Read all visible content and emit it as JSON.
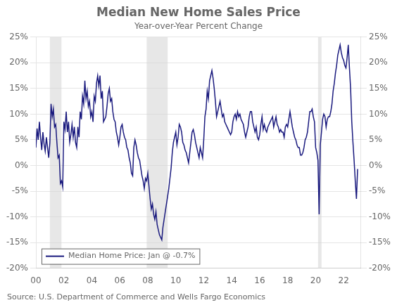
{
  "chart_data": {
    "type": "line",
    "title": "Median New Home Sales Price",
    "subtitle": "Year-over-Year Percent Change",
    "source": "Source: U.S. Department of Commerce and Wells Fargo Economics",
    "legend": "lower left",
    "grid": true,
    "recessions": [
      [
        2001.0,
        2001.83
      ],
      [
        2007.92,
        2009.42
      ],
      [
        2020.17,
        2020.42
      ]
    ],
    "recession_color": "#d3d3d3",
    "xlim": [
      2000.0,
      2023.25
    ],
    "xticks": [
      {
        "value": 2000,
        "label": "00"
      },
      {
        "value": 2002,
        "label": "02"
      },
      {
        "value": 2004,
        "label": "04"
      },
      {
        "value": 2006,
        "label": "06"
      },
      {
        "value": 2008,
        "label": "08"
      },
      {
        "value": 2010,
        "label": "10"
      },
      {
        "value": 2012,
        "label": "12"
      },
      {
        "value": 2014,
        "label": "14"
      },
      {
        "value": 2016,
        "label": "16"
      },
      {
        "value": 2018,
        "label": "18"
      },
      {
        "value": 2020,
        "label": "20"
      },
      {
        "value": 2022,
        "label": "22"
      }
    ],
    "ylim": [
      -20,
      25
    ],
    "yticks": [
      {
        "value": -20,
        "label": "-20%"
      },
      {
        "value": -15,
        "label": "-15%"
      },
      {
        "value": -10,
        "label": "-10%"
      },
      {
        "value": -5,
        "label": "-5%"
      },
      {
        "value": 0,
        "label": "0%"
      },
      {
        "value": 5,
        "label": "5%"
      },
      {
        "value": 10,
        "label": "10%"
      },
      {
        "value": 15,
        "label": "15%"
      },
      {
        "value": 20,
        "label": "20%"
      },
      {
        "value": 25,
        "label": "25%"
      }
    ],
    "y2lim": [
      -20,
      25
    ],
    "y2ticks": [
      {
        "value": -20,
        "label": "-20%"
      },
      {
        "value": -15,
        "label": "-15%"
      },
      {
        "value": -10,
        "label": "-10%"
      },
      {
        "value": -5,
        "label": "-5%"
      },
      {
        "value": 0,
        "label": "0%"
      },
      {
        "value": 5,
        "label": "5%"
      },
      {
        "value": 10,
        "label": "10%"
      },
      {
        "value": 15,
        "label": "15%"
      },
      {
        "value": 20,
        "label": "20%"
      },
      {
        "value": 25,
        "label": "25%"
      }
    ],
    "x": [
      2000.0,
      2000.083,
      2000.167,
      2000.25,
      2000.333,
      2000.417,
      2000.5,
      2000.583,
      2000.667,
      2000.75,
      2000.833,
      2000.917,
      2001.0,
      2001.083,
      2001.167,
      2001.25,
      2001.333,
      2001.417,
      2001.5,
      2001.583,
      2001.667,
      2001.75,
      2001.833,
      2001.917,
      2002.0,
      2002.083,
      2002.167,
      2002.25,
      2002.333,
      2002.417,
      2002.5,
      2002.583,
      2002.667,
      2002.75,
      2002.833,
      2002.917,
      2003.0,
      2003.083,
      2003.167,
      2003.25,
      2003.333,
      2003.417,
      2003.5,
      2003.583,
      2003.667,
      2003.75,
      2003.833,
      2003.917,
      2004.0,
      2004.083,
      2004.167,
      2004.25,
      2004.333,
      2004.417,
      2004.5,
      2004.583,
      2004.667,
      2004.75,
      2004.833,
      2004.917,
      2005.0,
      2005.083,
      2005.167,
      2005.25,
      2005.333,
      2005.417,
      2005.5,
      2005.583,
      2005.667,
      2005.75,
      2005.833,
      2005.917,
      2006.0,
      2006.083,
      2006.167,
      2006.25,
      2006.333,
      2006.417,
      2006.5,
      2006.583,
      2006.667,
      2006.75,
      2006.833,
      2006.917,
      2007.0,
      2007.083,
      2007.167,
      2007.25,
      2007.333,
      2007.417,
      2007.5,
      2007.583,
      2007.667,
      2007.75,
      2007.833,
      2007.917,
      2008.0,
      2008.083,
      2008.167,
      2008.25,
      2008.333,
      2008.417,
      2008.5,
      2008.583,
      2008.667,
      2008.75,
      2008.833,
      2008.917,
      2009.0,
      2009.083,
      2009.167,
      2009.25,
      2009.333,
      2009.417,
      2009.5,
      2009.583,
      2009.667,
      2009.75,
      2009.833,
      2009.917,
      2010.0,
      2010.083,
      2010.167,
      2010.25,
      2010.333,
      2010.417,
      2010.5,
      2010.583,
      2010.667,
      2010.75,
      2010.833,
      2010.917,
      2011.0,
      2011.083,
      2011.167,
      2011.25,
      2011.333,
      2011.417,
      2011.5,
      2011.583,
      2011.667,
      2011.75,
      2011.833,
      2011.917,
      2012.0,
      2012.083,
      2012.167,
      2012.25,
      2012.333,
      2012.417,
      2012.5,
      2012.583,
      2012.667,
      2012.75,
      2012.833,
      2012.917,
      2013.0,
      2013.083,
      2013.167,
      2013.25,
      2013.333,
      2013.417,
      2013.5,
      2013.583,
      2013.667,
      2013.75,
      2013.833,
      2013.917,
      2014.0,
      2014.083,
      2014.167,
      2014.25,
      2014.333,
      2014.417,
      2014.5,
      2014.583,
      2014.667,
      2014.75,
      2014.833,
      2014.917,
      2015.0,
      2015.083,
      2015.167,
      2015.25,
      2015.333,
      2015.417,
      2015.5,
      2015.583,
      2015.667,
      2015.75,
      2015.833,
      2015.917,
      2016.0,
      2016.083,
      2016.167,
      2016.25,
      2016.333,
      2016.417,
      2016.5,
      2016.583,
      2016.667,
      2016.75,
      2016.833,
      2016.917,
      2017.0,
      2017.083,
      2017.167,
      2017.25,
      2017.333,
      2017.417,
      2017.5,
      2017.583,
      2017.667,
      2017.75,
      2017.833,
      2017.917,
      2018.0,
      2018.083,
      2018.167,
      2018.25,
      2018.333,
      2018.417,
      2018.5,
      2018.583,
      2018.667,
      2018.75,
      2018.833,
      2018.917,
      2019.0,
      2019.083,
      2019.167,
      2019.25,
      2019.333,
      2019.417,
      2019.5,
      2019.583,
      2019.667,
      2019.75,
      2019.833,
      2019.917,
      2020.0,
      2020.083,
      2020.167,
      2020.25,
      2020.333,
      2020.417,
      2020.5,
      2020.583,
      2020.667,
      2020.75,
      2020.833,
      2020.917,
      2021.0,
      2021.083,
      2021.167,
      2021.25,
      2021.333,
      2021.417,
      2021.5,
      2021.583,
      2021.667,
      2021.75,
      2021.833,
      2021.917,
      2022.0,
      2022.083,
      2022.167,
      2022.25,
      2022.333,
      2022.417,
      2022.5,
      2022.583,
      2022.667,
      2022.75,
      2022.833,
      2022.917,
      2023.0
    ],
    "series": [
      {
        "name": "Median Home Price: Jan @ -0.7%",
        "color": "#1a1a7e",
        "values": [
          3.5,
          7.2,
          5.0,
          8.5,
          5.5,
          3.0,
          6.5,
          4.2,
          2.8,
          5.5,
          3.5,
          1.5,
          4.5,
          12.0,
          9.5,
          11.0,
          7.5,
          8.0,
          4.5,
          1.5,
          2.0,
          -3.5,
          -3.0,
          -4.2,
          8.5,
          7.0,
          10.5,
          6.5,
          8.5,
          4.5,
          6.0,
          8.0,
          5.5,
          7.5,
          4.5,
          3.5,
          7.5,
          5.5,
          10.5,
          9.0,
          13.5,
          12.0,
          16.5,
          13.0,
          14.5,
          11.5,
          12.5,
          9.5,
          10.5,
          8.5,
          13.5,
          12.5,
          16.0,
          17.5,
          15.5,
          17.5,
          13.0,
          14.5,
          8.5,
          9.0,
          9.5,
          11.5,
          14.0,
          15.0,
          12.5,
          13.0,
          10.5,
          9.0,
          8.5,
          6.5,
          5.5,
          4.0,
          5.5,
          7.5,
          8.0,
          6.5,
          5.5,
          5.0,
          3.5,
          3.0,
          1.5,
          0.5,
          -1.5,
          -2.0,
          3.5,
          5.0,
          4.0,
          2.5,
          1.5,
          1.0,
          -0.5,
          -2.0,
          -3.0,
          -4.5,
          -2.5,
          -3.0,
          -1.5,
          -4.0,
          -6.5,
          -8.5,
          -7.5,
          -9.5,
          -10.5,
          -9.0,
          -11.5,
          -12.5,
          -13.5,
          -14.0,
          -14.5,
          -12.0,
          -10.5,
          -9.0,
          -7.5,
          -6.0,
          -4.5,
          -2.5,
          -0.5,
          2.5,
          4.5,
          5.5,
          6.5,
          4.0,
          5.5,
          8.0,
          7.5,
          6.5,
          4.5,
          4.0,
          3.0,
          2.5,
          1.5,
          0.5,
          2.5,
          4.5,
          6.5,
          7.0,
          6.0,
          4.5,
          3.5,
          2.5,
          1.5,
          3.5,
          2.5,
          1.5,
          5.0,
          9.5,
          11.0,
          14.5,
          13.0,
          16.5,
          17.5,
          18.5,
          17.0,
          15.0,
          12.5,
          9.5,
          10.5,
          11.5,
          12.5,
          11.0,
          9.5,
          10.0,
          8.5,
          8.0,
          7.5,
          7.0,
          6.5,
          6.0,
          6.5,
          8.5,
          9.5,
          10.0,
          9.0,
          10.5,
          9.5,
          10.0,
          9.0,
          8.5,
          8.0,
          6.5,
          5.5,
          6.5,
          7.5,
          9.5,
          10.5,
          10.5,
          8.5,
          7.5,
          6.5,
          7.5,
          5.5,
          5.0,
          6.0,
          8.0,
          9.5,
          7.0,
          8.0,
          7.0,
          6.5,
          7.5,
          8.0,
          8.5,
          9.0,
          9.5,
          7.5,
          8.5,
          9.5,
          8.0,
          7.5,
          6.5,
          7.0,
          6.5,
          6.5,
          5.5,
          7.5,
          8.0,
          7.5,
          9.0,
          10.5,
          9.0,
          7.5,
          6.5,
          5.5,
          5.0,
          4.0,
          3.5,
          3.5,
          2.0,
          2.0,
          2.5,
          3.5,
          5.0,
          5.5,
          6.5,
          8.5,
          10.5,
          10.5,
          11.0,
          9.5,
          8.5,
          3.5,
          2.5,
          1.0,
          -9.5,
          4.0,
          6.5,
          9.0,
          10.0,
          9.5,
          7.5,
          9.0,
          9.5,
          9.5,
          10.5,
          12.0,
          14.5,
          16.0,
          18.0,
          19.5,
          21.5,
          22.5,
          23.5,
          22.0,
          21.0,
          20.5,
          19.5,
          19.0,
          21.0,
          23.5,
          19.0,
          15.0,
          8.5,
          4.5,
          1.0,
          -3.0,
          -6.5,
          -0.7
        ]
      }
    ]
  }
}
